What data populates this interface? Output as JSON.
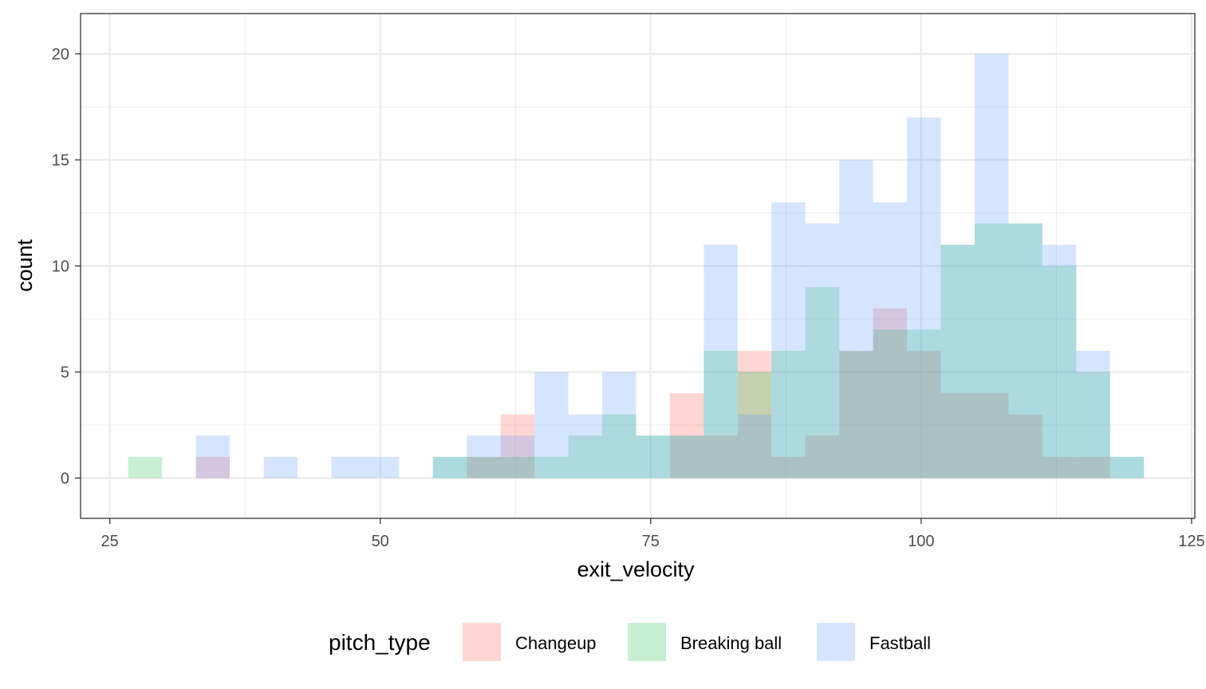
{
  "chart_data": {
    "type": "histogram",
    "xlabel": "exit_velocity",
    "ylabel": "count",
    "xlim": [
      22.3,
      125.3
    ],
    "ylim": [
      -1.9,
      21.9
    ],
    "x_ticks": [
      25,
      50,
      75,
      100,
      125
    ],
    "y_ticks": [
      0,
      5,
      10,
      15,
      20
    ],
    "bin_width": 3.13,
    "bin_starts": [
      26.7,
      29.83,
      32.96,
      36.09,
      39.22,
      42.35,
      45.48,
      48.61,
      51.74,
      54.87,
      58.0,
      61.13,
      64.26,
      67.39,
      70.52,
      73.65,
      76.78,
      79.91,
      83.04,
      86.17,
      89.3,
      92.43,
      95.56,
      98.69,
      101.82,
      104.95,
      108.08,
      111.21,
      114.34,
      117.47,
      120.6
    ],
    "grid": true,
    "legend": {
      "title": "pitch_type",
      "position": "bottom"
    },
    "series": [
      {
        "name": "Changeup",
        "color": "#F8766D",
        "values": [
          0,
          0,
          1,
          0,
          0,
          0,
          0,
          0,
          0,
          0,
          1,
          3,
          0,
          0,
          0,
          0,
          4,
          2,
          6,
          1,
          2,
          6,
          8,
          6,
          4,
          4,
          3,
          1,
          1,
          0,
          0
        ]
      },
      {
        "name": "Breaking ball",
        "color": "#00BA38",
        "values": [
          1,
          0,
          0,
          0,
          0,
          0,
          0,
          0,
          0,
          1,
          1,
          1,
          1,
          2,
          3,
          2,
          2,
          6,
          5,
          6,
          9,
          6,
          7,
          7,
          11,
          12,
          12,
          10,
          5,
          1,
          0
        ]
      },
      {
        "name": "Fastball",
        "color": "#619CFF",
        "values": [
          0,
          0,
          2,
          0,
          1,
          0,
          1,
          1,
          0,
          1,
          2,
          2,
          5,
          3,
          5,
          2,
          2,
          11,
          3,
          13,
          12,
          15,
          13,
          17,
          11,
          20,
          12,
          11,
          6,
          1,
          0
        ]
      }
    ]
  }
}
